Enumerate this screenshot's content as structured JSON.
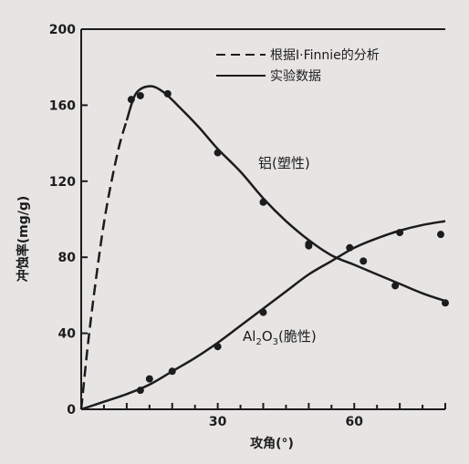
{
  "chart_data": {
    "type": "line",
    "xlabel": "攻角(°)",
    "ylabel": "冲蚀率(mg/g)",
    "xlim": [
      0,
      80
    ],
    "ylim": [
      0,
      200
    ],
    "x_ticks": [
      {
        "value": 30,
        "label": "30"
      },
      {
        "value": 60,
        "label": "60"
      }
    ],
    "y_ticks": [
      {
        "value": 0,
        "label": "0"
      },
      {
        "value": 40,
        "label": "40"
      },
      {
        "value": 80,
        "label": "80"
      },
      {
        "value": 120,
        "label": "120"
      },
      {
        "value": 160,
        "label": "160"
      },
      {
        "value": 200,
        "label": "200"
      }
    ],
    "grid": false,
    "legend": {
      "position": "top-right",
      "entries": [
        {
          "label": "根据I·Finnie的分析",
          "style": "dashed"
        },
        {
          "label": "实验数据",
          "style": "solid"
        }
      ]
    },
    "annotations": {
      "aluminum": "铝(塑性)",
      "alumina": "Al2O3(脆性)"
    },
    "series": [
      {
        "name": "铝(塑性)",
        "style": "dashed",
        "x": [
          0,
          2,
          5,
          8,
          10
        ],
        "y": [
          0,
          45,
          98,
          135,
          152
        ]
      },
      {
        "name": "铝(塑性)",
        "style": "solid",
        "x": [
          10,
          12,
          15,
          18,
          22,
          26,
          30,
          35,
          40,
          45,
          50,
          55,
          60,
          65,
          70,
          75,
          80
        ],
        "y": [
          152,
          166,
          170,
          167,
          158,
          148,
          137,
          125,
          111,
          99,
          89,
          81,
          76,
          71,
          66,
          61,
          57
        ]
      },
      {
        "name": "Al2O3(脆性)",
        "style": "solid",
        "x": [
          0,
          5,
          10,
          15,
          20,
          25,
          30,
          35,
          40,
          45,
          50,
          55,
          60,
          65,
          70,
          75,
          80
        ],
        "y": [
          0,
          4,
          8,
          13,
          20,
          27,
          35,
          44,
          53,
          62,
          71,
          78,
          85,
          90,
          94,
          97,
          99
        ]
      },
      {
        "name": "铝(塑性) 实验点",
        "style": "points",
        "x": [
          11,
          13,
          19,
          30,
          40,
          50,
          62,
          69,
          80
        ],
        "y": [
          163,
          165,
          166,
          135,
          109,
          86,
          78,
          65,
          56
        ]
      },
      {
        "name": "Al2O3(脆性) 实验点",
        "style": "points",
        "x": [
          13,
          15,
          20,
          30,
          40,
          50,
          59,
          70,
          79
        ],
        "y": [
          10,
          16,
          20,
          33,
          51,
          87,
          85,
          93,
          92
        ]
      }
    ]
  }
}
